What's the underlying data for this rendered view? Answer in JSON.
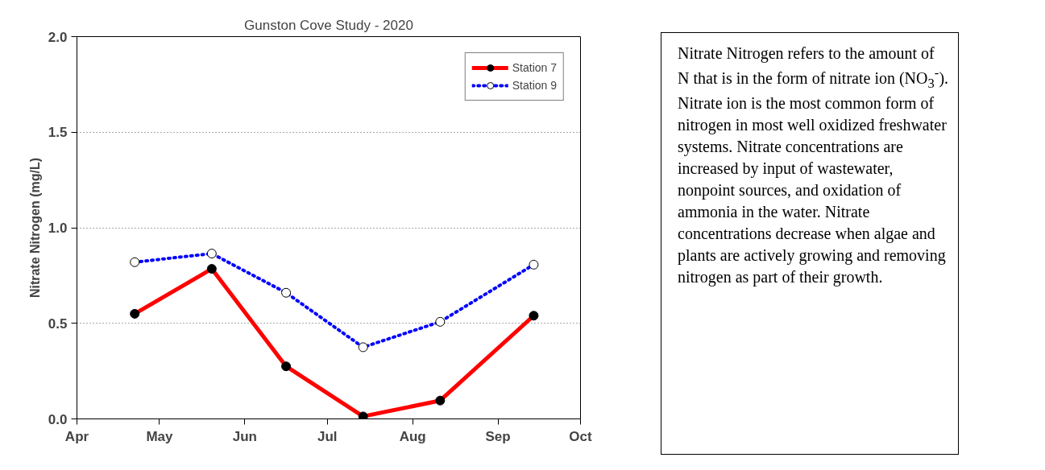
{
  "chart_data": {
    "type": "line",
    "title": "Gunston Cove Study - 2020",
    "ylabel": "Nitrate Nitrogen (mg/L)",
    "x": [
      "2020-04-22",
      "2020-05-20",
      "2020-06-16",
      "2020-07-14",
      "2020-08-11",
      "2020-09-14"
    ],
    "series": [
      {
        "name": "Station 7",
        "color": "#ff0000",
        "values": [
          0.55,
          0.785,
          0.275,
          0.013,
          0.096,
          0.54
        ],
        "line_style": "solid"
      },
      {
        "name": "Station 9",
        "color": "#0000ff",
        "values": [
          0.82,
          0.865,
          0.66,
          0.375,
          0.508,
          0.807
        ],
        "line_style": "dotted"
      }
    ],
    "xlim": [
      "2020-04-01",
      "2020-10-01"
    ],
    "xticks": [
      {
        "value": "2020-04-01",
        "label": "Apr"
      },
      {
        "value": "2020-05-01",
        "label": "May"
      },
      {
        "value": "2020-06-01",
        "label": "Jun"
      },
      {
        "value": "2020-07-01",
        "label": "Jul"
      },
      {
        "value": "2020-08-01",
        "label": "Aug"
      },
      {
        "value": "2020-09-01",
        "label": "Sep"
      },
      {
        "value": "2020-10-01",
        "label": "Oct"
      }
    ],
    "ylim": [
      0,
      2.0
    ],
    "yticks": [
      {
        "value": 0,
        "label": "0.0"
      },
      {
        "value": 0.5,
        "label": "0.5"
      },
      {
        "value": 1.0,
        "label": "1.0"
      },
      {
        "value": 1.5,
        "label": "1.5"
      },
      {
        "value": 2.0,
        "label": "2.0"
      }
    ],
    "grid": "y",
    "legend": "top right",
    "marker": "circle",
    "annotations": [
      "Nitrate Nitrogen refers to the amount of N that is in the form of nitrate ion (NO$_{3}$$^{-}$).  Nitrate ion is the most common form of nitrogen in most well oxidized freshwater systems. Nitrate concentrations are increased by input of wastewater, nonpoint sources, and oxidation of ammonia in the water. Nitrate concentrations decrease when algae and plants are actively growing and removing nitrogen as part of their growth."
    ]
  }
}
